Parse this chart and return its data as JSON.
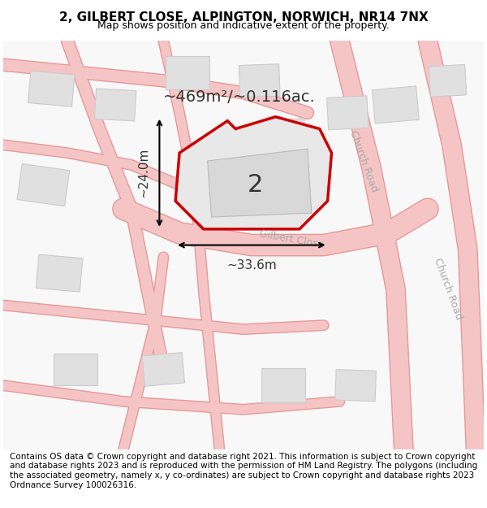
{
  "title": "2, GILBERT CLOSE, ALPINGTON, NORWICH, NR14 7NX",
  "subtitle": "Map shows position and indicative extent of the property.",
  "footer": "Contains OS data © Crown copyright and database right 2021. This information is subject to Crown copyright and database rights 2023 and is reproduced with the permission of HM Land Registry. The polygons (including the associated geometry, namely x, y co-ordinates) are subject to Crown copyright and database rights 2023 Ordnance Survey 100026316.",
  "bg_color": "#ffffff",
  "map_bg": "#f5f5f5",
  "road_color": "#f0c0c0",
  "road_line_color": "#e08080",
  "building_fill": "#e0e0e0",
  "building_edge": "#cccccc",
  "plot_fill": "#e8e8e8",
  "plot_edge": "#cc0000",
  "plot_edge_width": 2.5,
  "area_text": "~469m²/~0.116ac.",
  "label_2": "2",
  "dim_width": "~33.6m",
  "dim_height": "~24.0m",
  "road1_label": "Church Road",
  "road2_label": "Gilbert Close",
  "road3_label": "Church Road",
  "title_fontsize": 11,
  "subtitle_fontsize": 9,
  "footer_fontsize": 7.5
}
